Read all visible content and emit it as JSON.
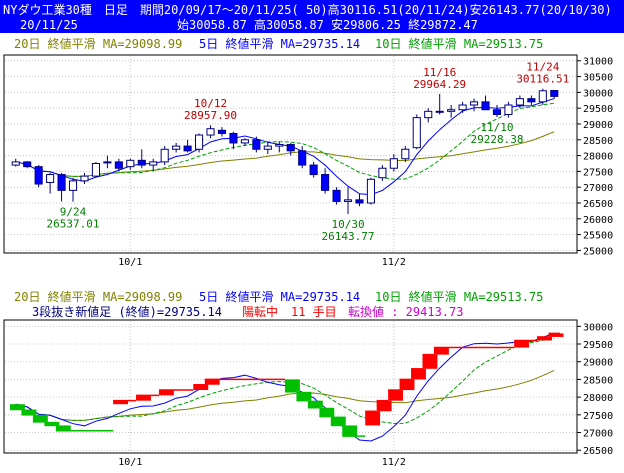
{
  "header": {
    "line1": "NYダウ工業30種　日足　期間20/09/17～20/11/25( 50)高30116.51(20/11/24)安26143.77(20/10/30)",
    "line2_date": "20/11/25",
    "line2_ohlc": "始30058.87 高30058.87 安29806.25 終29872.47"
  },
  "colors": {
    "header_bg": "#0000ff",
    "header_text": "#ffffff",
    "up_candle": "#ffffff",
    "down_candle": "#0000ff",
    "ma5": "#0000ff",
    "ma10": "#00a000",
    "ma20": "#808000",
    "brick_up": "#ff0000",
    "brick_down": "#00c000",
    "annotation_high": "#c00000",
    "annotation_low": "#008000",
    "reversal_text": "#cc00cc"
  },
  "legend": {
    "ma20": "20日 終値平滑 MA=29098.99",
    "ma5": "5日 終値平滑 MA=29735.14",
    "ma10": "10日 終値平滑 MA=29513.75"
  },
  "lower_info": {
    "title": "3段抜き新値足 (終値)=29735.14",
    "trend": "陽転中",
    "count": "11 手目",
    "reversal": "転換値 : 29413.73"
  },
  "chart_data": [
    {
      "type": "candlestick",
      "y_ticks": [
        25000,
        25500,
        26000,
        26500,
        27000,
        27500,
        28000,
        28500,
        29000,
        29500,
        30000,
        30500,
        31000
      ],
      "ylim": [
        24950,
        31150
      ],
      "x_labels": [
        {
          "index": 10,
          "label": "10/1"
        },
        {
          "index": 33,
          "label": "11/2"
        }
      ],
      "ohlc": [
        [
          27700,
          27900,
          27650,
          27800
        ],
        [
          27800,
          27820,
          27600,
          27650
        ],
        [
          27650,
          27700,
          27000,
          27100
        ],
        [
          27150,
          27450,
          26800,
          27400
        ],
        [
          27400,
          27450,
          26550,
          26900
        ],
        [
          26900,
          27300,
          26540,
          27200
        ],
        [
          27200,
          27450,
          27100,
          27350
        ],
        [
          27350,
          27800,
          27300,
          27750
        ],
        [
          27800,
          28000,
          27600,
          27800
        ],
        [
          27800,
          27900,
          27500,
          27600
        ],
        [
          27650,
          27900,
          27550,
          27850
        ],
        [
          27850,
          28200,
          27600,
          27700
        ],
        [
          27700,
          27900,
          27500,
          27800
        ],
        [
          27800,
          28300,
          27700,
          28200
        ],
        [
          28200,
          28400,
          28100,
          28300
        ],
        [
          28300,
          28500,
          28100,
          28150
        ],
        [
          28200,
          28700,
          28100,
          28650
        ],
        [
          28650,
          28960,
          28550,
          28850
        ],
        [
          28800,
          28900,
          28600,
          28700
        ],
        [
          28700,
          28750,
          28200,
          28400
        ],
        [
          28400,
          28550,
          28300,
          28500
        ],
        [
          28500,
          28600,
          28100,
          28200
        ],
        [
          28200,
          28450,
          28050,
          28300
        ],
        [
          28300,
          28450,
          28100,
          28350
        ],
        [
          28350,
          28400,
          28000,
          28150
        ],
        [
          28150,
          28300,
          27600,
          27700
        ],
        [
          27700,
          27800,
          27300,
          27400
        ],
        [
          27400,
          27600,
          26800,
          26900
        ],
        [
          26900,
          27000,
          26450,
          26550
        ],
        [
          26550,
          27000,
          26150,
          26600
        ],
        [
          26600,
          26800,
          26400,
          26500
        ],
        [
          26500,
          27300,
          26450,
          27250
        ],
        [
          27300,
          27700,
          27200,
          27600
        ],
        [
          27600,
          28050,
          27500,
          27900
        ],
        [
          27900,
          28300,
          27800,
          28200
        ],
        [
          28250,
          29300,
          28200,
          29200
        ],
        [
          29200,
          29500,
          29050,
          29400
        ],
        [
          29400,
          29950,
          29300,
          29400
        ],
        [
          29400,
          29600,
          29200,
          29450
        ],
        [
          29450,
          29700,
          29350,
          29600
        ],
        [
          29600,
          29800,
          29400,
          29700
        ],
        [
          29700,
          29900,
          29500,
          29450
        ],
        [
          29450,
          29600,
          29220,
          29300
        ],
        [
          29300,
          29700,
          29200,
          29600
        ],
        [
          29600,
          29900,
          29500,
          29800
        ],
        [
          29800,
          29900,
          29600,
          29700
        ],
        [
          29700,
          30117,
          29600,
          30050
        ],
        [
          30058,
          30058,
          29806,
          29872
        ]
      ],
      "ma5_value": 29735.14,
      "ma10_value": 29513.75,
      "ma20_value": 29098.99,
      "annotations": [
        {
          "index": 5,
          "date": "9/24",
          "value": "26537.01",
          "kind": "low"
        },
        {
          "index": 17,
          "date": "10/12",
          "value": "28957.90",
          "kind": "high"
        },
        {
          "index": 29,
          "date": "10/30",
          "value": "26143.77",
          "kind": "low"
        },
        {
          "index": 37,
          "date": "11/16",
          "value": "29964.29",
          "kind": "high"
        },
        {
          "index": 42,
          "date": "11/10",
          "value": "29228.38",
          "kind": "low"
        },
        {
          "index": 46,
          "date": "11/24",
          "value": "30116.51",
          "kind": "high"
        }
      ]
    },
    {
      "type": "three-line-break",
      "y_ticks": [
        26500,
        27000,
        27500,
        28000,
        28500,
        29000,
        29500,
        30000
      ],
      "ylim": [
        26450,
        30150
      ],
      "x_labels": [
        {
          "index": 10,
          "label": "10/1"
        },
        {
          "index": 33,
          "label": "11/2"
        }
      ],
      "bricks": [
        {
          "dir": "down",
          "from": 27800,
          "to": 27650
        },
        {
          "dir": "down",
          "from": 27650,
          "to": 27500
        },
        {
          "dir": "down",
          "from": 27500,
          "to": 27300
        },
        {
          "dir": "down",
          "from": 27300,
          "to": 27200
        },
        {
          "dir": "down",
          "from": 27200,
          "to": 27050
        },
        {
          "dir": "up",
          "from": 27800,
          "to": 27900
        },
        {
          "dir": "up",
          "from": 27900,
          "to": 28050
        },
        {
          "dir": "up",
          "from": 28050,
          "to": 28200
        },
        {
          "dir": "up",
          "from": 28200,
          "to": 28350
        },
        {
          "dir": "up",
          "from": 28350,
          "to": 28500
        },
        {
          "dir": "down",
          "from": 28500,
          "to": 28150
        },
        {
          "dir": "down",
          "from": 28150,
          "to": 27900
        },
        {
          "dir": "down",
          "from": 27900,
          "to": 27700
        },
        {
          "dir": "down",
          "from": 27700,
          "to": 27450
        },
        {
          "dir": "down",
          "from": 27450,
          "to": 27200
        },
        {
          "dir": "down",
          "from": 27200,
          "to": 26900
        },
        {
          "dir": "up",
          "from": 27200,
          "to": 27600
        },
        {
          "dir": "up",
          "from": 27600,
          "to": 27900
        },
        {
          "dir": "up",
          "from": 27900,
          "to": 28200
        },
        {
          "dir": "up",
          "from": 28200,
          "to": 28500
        },
        {
          "dir": "up",
          "from": 28500,
          "to": 28800
        },
        {
          "dir": "up",
          "from": 28800,
          "to": 29200
        },
        {
          "dir": "up",
          "from": 29200,
          "to": 29400
        },
        {
          "dir": "up",
          "from": 29400,
          "to": 29600
        },
        {
          "dir": "up",
          "from": 29600,
          "to": 29700
        },
        {
          "dir": "up",
          "from": 29700,
          "to": 29800
        }
      ],
      "dates_per_brick": [
        0,
        1,
        2,
        3,
        4,
        9,
        11,
        13,
        16,
        17,
        24,
        25,
        26,
        27,
        28,
        29,
        31,
        32,
        33,
        34,
        35,
        36,
        37,
        44,
        46,
        47
      ]
    }
  ]
}
